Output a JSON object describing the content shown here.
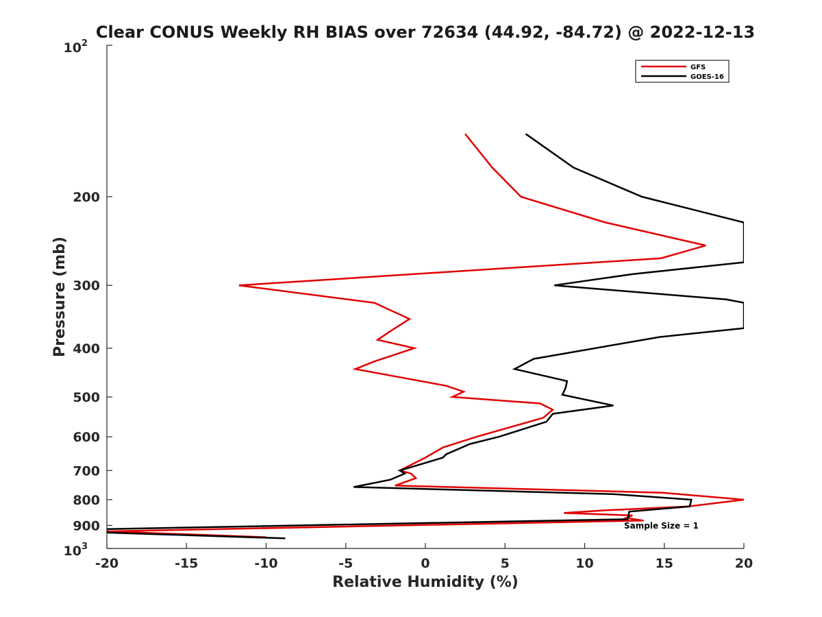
{
  "chart_data": {
    "type": "line",
    "title": "Clear CONUS Weekly RH BIAS over 72634 (44.92, -84.72) @ 2022-12-13",
    "xlabel": "Relative Humidity (%)",
    "ylabel": "Pressure (mb)",
    "xlim": [
      -20,
      20
    ],
    "ylim": [
      100,
      1000
    ],
    "yscale": "log",
    "y_reversed": true,
    "x_ticks": [
      -20,
      -15,
      -10,
      -5,
      0,
      5,
      10,
      15,
      20
    ],
    "x_tick_labels": [
      "-20",
      "-15",
      "-10",
      "-5",
      "0",
      "5",
      "10",
      "15",
      "20"
    ],
    "y_ticks": [
      200,
      300,
      400,
      500,
      600,
      700,
      800,
      900
    ],
    "y_tick_labels": [
      "200",
      "300",
      "400",
      "500",
      "600",
      "700",
      "800",
      "900"
    ],
    "y_end_labels": {
      "top_base": "10",
      "top_exp": "2",
      "bottom_base": "10",
      "bottom_exp": "3"
    },
    "legend": {
      "position": "top-right",
      "entries": [
        "GFS",
        "GOES-16"
      ]
    },
    "annotation": "Sample Size = 1",
    "series": [
      {
        "name": "GFS",
        "color": "#e00000",
        "points": [
          [
            2.5,
            150
          ],
          [
            4.2,
            175
          ],
          [
            6.0,
            200
          ],
          [
            11.3,
            225
          ],
          [
            17.6,
            250
          ],
          [
            14.8,
            265
          ],
          [
            -11.7,
            300
          ],
          [
            -3.2,
            325
          ],
          [
            -1.0,
            350
          ],
          [
            -2.2,
            370
          ],
          [
            -3.0,
            385
          ],
          [
            -0.7,
            400
          ],
          [
            -3.2,
            425
          ],
          [
            -4.4,
            440
          ],
          [
            1.3,
            475
          ],
          [
            2.4,
            488
          ],
          [
            1.7,
            500
          ],
          [
            7.2,
            515
          ],
          [
            8.0,
            530
          ],
          [
            7.4,
            550
          ],
          [
            3.2,
            600
          ],
          [
            1.1,
            630
          ],
          [
            0.0,
            660
          ],
          [
            -1.6,
            700
          ],
          [
            -0.9,
            710
          ],
          [
            -0.6,
            725
          ],
          [
            -1.9,
            750
          ],
          [
            14.9,
            775
          ],
          [
            20.0,
            800
          ],
          [
            16.5,
            825
          ],
          [
            11.3,
            840
          ],
          [
            8.7,
            850
          ],
          [
            13.0,
            860
          ],
          [
            12.6,
            870
          ],
          [
            13.7,
            880
          ],
          [
            -20.0,
            925
          ],
          [
            -10.0,
            950
          ]
        ]
      },
      {
        "name": "GOES-16",
        "color": "#000000",
        "points": [
          [
            6.3,
            150
          ],
          [
            9.3,
            175
          ],
          [
            13.6,
            200
          ],
          [
            20.0,
            225
          ],
          [
            20.0,
            270
          ],
          [
            13.0,
            285
          ],
          [
            8.1,
            300
          ],
          [
            18.9,
            320
          ],
          [
            20.0,
            325
          ],
          [
            20.0,
            365
          ],
          [
            14.7,
            380
          ],
          [
            6.8,
            420
          ],
          [
            5.6,
            440
          ],
          [
            8.9,
            465
          ],
          [
            8.8,
            480
          ],
          [
            8.6,
            495
          ],
          [
            11.8,
            520
          ],
          [
            8.0,
            540
          ],
          [
            7.6,
            560
          ],
          [
            4.6,
            600
          ],
          [
            2.8,
            620
          ],
          [
            1.3,
            650
          ],
          [
            1.1,
            660
          ],
          [
            -1.6,
            700
          ],
          [
            -1.3,
            710
          ],
          [
            -2.2,
            730
          ],
          [
            -4.5,
            755
          ],
          [
            11.8,
            780
          ],
          [
            16.7,
            800
          ],
          [
            16.6,
            825
          ],
          [
            12.8,
            845
          ],
          [
            12.7,
            875
          ],
          [
            -20.0,
            915
          ],
          [
            -20.0,
            930
          ],
          [
            -8.8,
            955
          ]
        ]
      }
    ]
  }
}
